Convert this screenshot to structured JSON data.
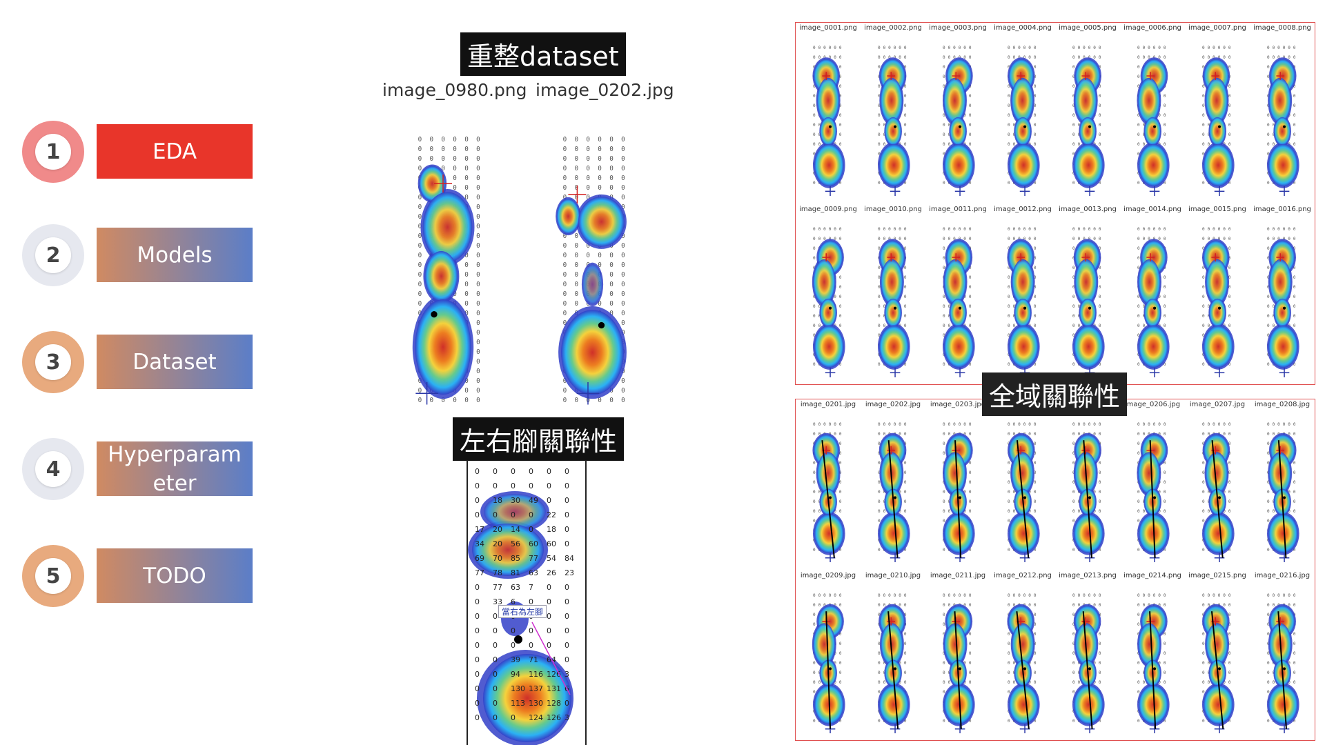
{
  "nav": {
    "items": [
      {
        "number": "1",
        "label": "EDA"
      },
      {
        "number": "2",
        "label": "Models"
      },
      {
        "number": "3",
        "label": "Dataset"
      },
      {
        "number": "4",
        "label": "Hyperparam eter"
      },
      {
        "number": "5",
        "label": "TODO"
      }
    ]
  },
  "center": {
    "title_reorg": "重整dataset",
    "file_left": "image_0980.png",
    "file_right": "image_0202.jpg",
    "title_lr": "左右腳關聯性",
    "annotation": "當右為左腳",
    "zoom_grid_rows": [
      [
        "0",
        "0",
        "0",
        "0",
        "0",
        "0"
      ],
      [
        "0",
        "0",
        "0",
        "0",
        "0",
        "0"
      ],
      [
        "0",
        "18",
        "30",
        "49",
        "0",
        "0"
      ],
      [
        "0",
        "0",
        "0",
        "0",
        "22",
        "0"
      ],
      [
        "17",
        "20",
        "14",
        "0",
        "18",
        "0"
      ],
      [
        "34",
        "20",
        "56",
        "60",
        "60",
        "0"
      ],
      [
        "69",
        "70",
        "85",
        "77",
        "54",
        "84"
      ],
      [
        "77",
        "78",
        "81",
        "63",
        "26",
        "23"
      ],
      [
        "0",
        "77",
        "63",
        "7",
        "0",
        "0"
      ],
      [
        "0",
        "33",
        "6",
        "0",
        "0",
        "0"
      ],
      [
        "0",
        "0",
        "0",
        "0",
        "0",
        "0"
      ],
      [
        "0",
        "0",
        "0",
        "0",
        "0",
        "0"
      ],
      [
        "0",
        "0",
        "0",
        "0",
        "0",
        "0"
      ],
      [
        "0",
        "0",
        "39",
        "71",
        "64",
        "0"
      ],
      [
        "0",
        "0",
        "94",
        "116",
        "126",
        "3"
      ],
      [
        "0",
        "0",
        "130",
        "137",
        "131",
        "6"
      ],
      [
        "0",
        "0",
        "113",
        "130",
        "128",
        "0"
      ],
      [
        "0",
        "0",
        "0",
        "124",
        "126",
        "3"
      ]
    ]
  },
  "right": {
    "title_global": "全域關聯性",
    "top_grid": [
      "image_0001.png",
      "image_0002.png",
      "image_0003.png",
      "image_0004.png",
      "image_0005.png",
      "image_0006.png",
      "image_0007.png",
      "image_0008.png",
      "image_0009.png",
      "image_0010.png",
      "image_0011.png",
      "image_0012.png",
      "image_0013.png",
      "image_0014.png",
      "image_0015.png",
      "image_0016.png"
    ],
    "bottom_grid": [
      "image_0201.jpg",
      "image_0202.jpg",
      "image_0203.jpg",
      "image_0204.jpg",
      "image_0205.jpg",
      "image_0206.jpg",
      "image_0207.jpg",
      "image_0208.jpg",
      "image_0209.jpg",
      "image_0210.jpg",
      "image_0211.jpg",
      "image_0212.png",
      "image_0213.png",
      "image_0214.png",
      "image_0215.png",
      "image_0216.jpg"
    ]
  },
  "colors": {
    "eda_red": "#e8352a",
    "circle_red": "#f08a8a",
    "circle_peach": "#e8aa7e",
    "circle_gray": "#e6e8ef",
    "gradient_start": "#d08a62",
    "gradient_end": "#5b7ec8",
    "panel_border": "#e05050"
  }
}
